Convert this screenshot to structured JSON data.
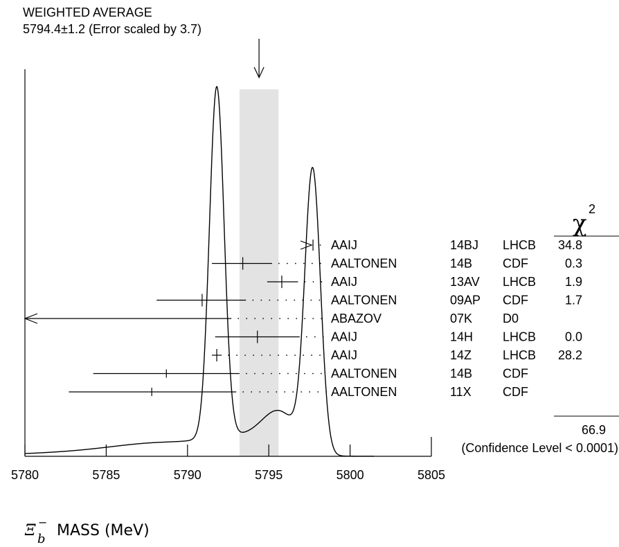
{
  "chart_data": {
    "type": "ideogram",
    "title_line1": "WEIGHTED AVERAGE",
    "title_line2": "5794.4±1.2 (Error scaled by 3.7)",
    "xlabel": {
      "symbol": "Ξ",
      "subscript": "b",
      "superscript": "−",
      "text": "MASS (MeV)"
    },
    "xlim": [
      5780,
      5805
    ],
    "ticks": [
      "5780",
      "5785",
      "5790",
      "5795",
      "5800",
      "5805"
    ],
    "tick_values": [
      5780,
      5785,
      5790,
      5795,
      5800,
      5805
    ],
    "average": {
      "value": 5794.4,
      "error": 1.2,
      "band": [
        5793.2,
        5795.6
      ]
    },
    "chi2_header": "χ",
    "chi2_sup": "2",
    "measurements": [
      {
        "author": "AAIJ",
        "ref": "14BJ",
        "exp": "LHCB",
        "chi2": "34.8",
        "value": 5797.72,
        "lo": 5797.7,
        "hi": 5797.74,
        "arrow": "none"
      },
      {
        "author": "AALTONEN",
        "ref": "14B",
        "exp": "CDF",
        "chi2": "0.3",
        "value": 5793.4,
        "lo": 5791.5,
        "hi": 5795.2,
        "arrow": "none"
      },
      {
        "author": "AAIJ",
        "ref": "13AV",
        "exp": "LHCB",
        "chi2": "1.9",
        "value": 5795.8,
        "lo": 5794.9,
        "hi": 5796.8,
        "arrow": "none"
      },
      {
        "author": "AALTONEN",
        "ref": "09AP",
        "exp": "CDF",
        "chi2": "1.7",
        "value": 5790.9,
        "lo": 5788.1,
        "hi": 5793.6,
        "arrow": "none"
      },
      {
        "author": "ABAZOV",
        "ref": "07K",
        "exp": "D0",
        "chi2": "",
        "value": 5774,
        "lo": 5780.0,
        "hi": 5792.7,
        "arrow": "left"
      },
      {
        "author": "AAIJ",
        "ref": "14H",
        "exp": "LHCB",
        "chi2": "0.0",
        "value": 5794.3,
        "lo": 5791.7,
        "hi": 5796.9,
        "arrow": "none"
      },
      {
        "author": "AAIJ",
        "ref": "14Z",
        "exp": "LHCB",
        "chi2": "28.2",
        "value": 5791.8,
        "lo": 5791.5,
        "hi": 5792.1,
        "arrow": "none"
      },
      {
        "author": "AALTONEN",
        "ref": "14B",
        "exp": "CDF",
        "chi2": "",
        "value": 5788.7,
        "lo": 5784.2,
        "hi": 5793.2,
        "arrow": "none"
      },
      {
        "author": "AALTONEN",
        "ref": "11X",
        "exp": "CDF",
        "chi2": "",
        "value": 5787.8,
        "lo": 5782.7,
        "hi": 5793.0,
        "arrow": "none"
      }
    ],
    "chi2_total": "66.9",
    "confidence_level": "(Confidence Level < 0.0001)",
    "ideogram_components": [
      {
        "mu": 5791.8,
        "sigma": 0.45,
        "weight": 1.0
      },
      {
        "mu": 5797.7,
        "sigma": 0.48,
        "weight": 0.8
      },
      {
        "mu": 5795.7,
        "sigma": 1.1,
        "weight": 0.11
      },
      {
        "mu": 5793.2,
        "sigma": 1.8,
        "weight": 0.04
      },
      {
        "mu": 5789.0,
        "sigma": 3.2,
        "weight": 0.03
      },
      {
        "mu": 5785.0,
        "sigma": 5.0,
        "weight": 0.012
      }
    ]
  }
}
